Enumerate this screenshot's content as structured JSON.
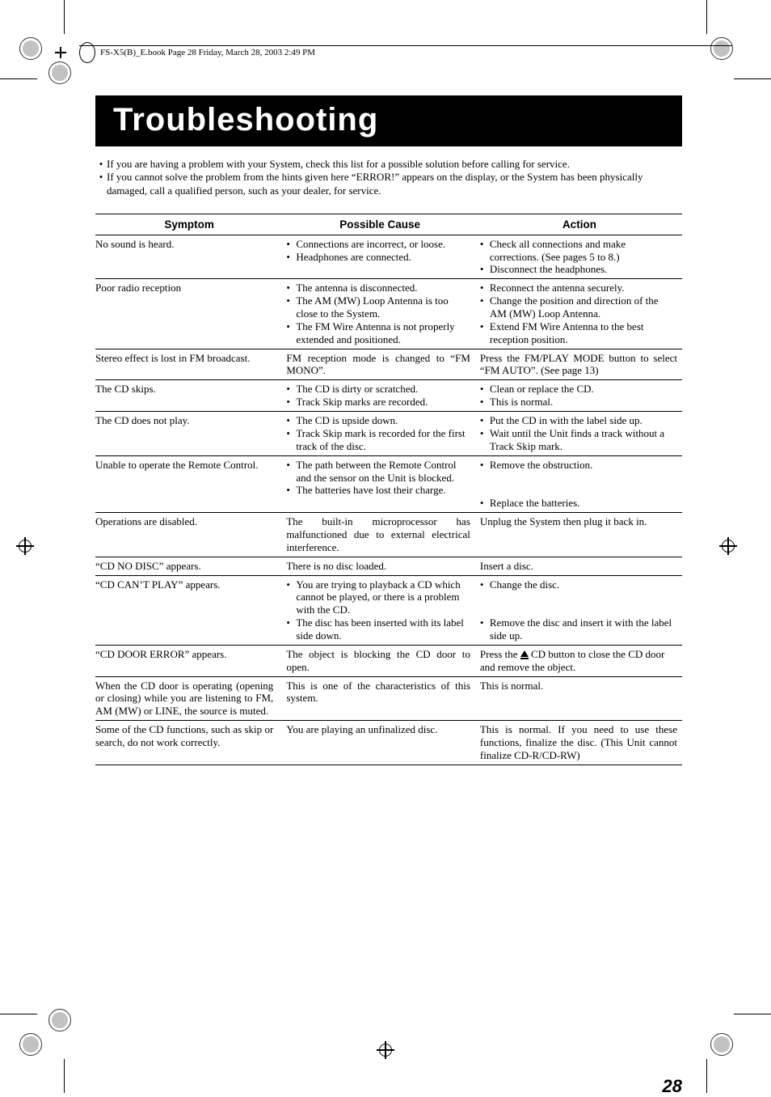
{
  "framemaker": {
    "text": "FS-X5(B)_E.book  Page 28  Friday, March 28, 2003  2:49 PM"
  },
  "title": "Troubleshooting",
  "intro": [
    "If you are having a problem with your System, check this list for a possible solution before calling for service.",
    "If you cannot solve the problem from the hints given here “ERROR!” appears on the display, or the System has been physically damaged, call a qualified person, such as your dealer, for service."
  ],
  "headers": {
    "symptom": "Symptom",
    "cause": "Possible Cause",
    "action": "Action"
  },
  "rows": [
    {
      "symptom": "No sound is heard.",
      "cause": [
        "Connections are incorrect, or loose.",
        "Headphones are connected."
      ],
      "action": [
        "Check all connections and make corrections. (See pages 5 to 8.)",
        "Disconnect the headphones."
      ]
    },
    {
      "symptom": "Poor radio reception",
      "cause": [
        "The antenna is disconnected.",
        "The AM (MW) Loop Antenna is too close to the System.",
        "The FM Wire Antenna is not properly extended and positioned."
      ],
      "action": [
        "Reconnect the antenna securely.",
        "Change the position and direction of the AM (MW) Loop Antenna.",
        "Extend FM Wire Antenna to the best reception position."
      ]
    },
    {
      "symptom": "Stereo effect is lost in FM broadcast.",
      "cause_plain": "FM reception mode is changed to “FM MONO”.",
      "cause_justify": true,
      "action_plain": "Press the FM/PLAY MODE button to select “FM AUTO”. (See page 13)",
      "action_justify": true
    },
    {
      "symptom": "The CD skips.",
      "cause": [
        "The CD is dirty or scratched.",
        "Track Skip marks are recorded."
      ],
      "action": [
        "Clean or replace the CD.",
        "This is normal."
      ]
    },
    {
      "symptom": "The CD does not play.",
      "cause": [
        "The CD is upside down.",
        "Track Skip mark is recorded for the first track of the disc."
      ],
      "action": [
        "Put the CD in with the label side up.",
        "Wait until the Unit finds a track without a Track Skip mark."
      ]
    },
    {
      "symptom": "Unable to operate the Remote Control.",
      "cause": [
        "The path between the Remote Control and the sensor on the Unit is blocked.",
        "The batteries have lost their charge."
      ],
      "action": [
        "Remove the obstruction.",
        "",
        "",
        "Replace the batteries."
      ],
      "action_pad": true
    },
    {
      "symptom": "Operations are disabled.",
      "cause_plain": "The built-in microprocessor has malfunctioned due to external electrical interference.",
      "cause_justify": true,
      "action_plain": "Unplug the System then plug it back in."
    },
    {
      "symptom": "“CD NO DISC” appears.",
      "cause_plain": "There is no disc loaded.",
      "action_plain": "Insert a disc."
    },
    {
      "symptom": "“CD CAN’T PLAY” appears.",
      "cause": [
        "You are trying to playback a CD which cannot be played, or there is a problem with the CD.",
        "The disc has been inserted with its label side down."
      ],
      "action": [
        "Change the disc.",
        "",
        "",
        "Remove the disc and insert it with the label side up."
      ],
      "action_pad": true
    },
    {
      "symptom": "“CD DOOR ERROR” appears.",
      "cause_plain": "The object is blocking the CD door to open.",
      "cause_justify": true,
      "action_eject": {
        "pre": "Press the ",
        "post": " CD button to close the CD door and remove the object."
      }
    },
    {
      "symptom": "When the CD door is operating (opening or closing) while you are listening to FM, AM (MW) or LINE, the source is muted.",
      "symptom_justify": true,
      "cause_plain": "This is one of the characteristics of this system.",
      "cause_justify": true,
      "action_plain": "This is normal."
    },
    {
      "symptom": "Some of the CD functions, such as skip or search, do not work correctly.",
      "symptom_justify": true,
      "cause_plain": "You are playing an unfinalized disc.",
      "action_plain": "This is normal. If you need to use these functions, finalize the disc. (This Unit cannot finalize CD-R/CD-RW)",
      "action_justify": true
    }
  ],
  "page_number": "28"
}
